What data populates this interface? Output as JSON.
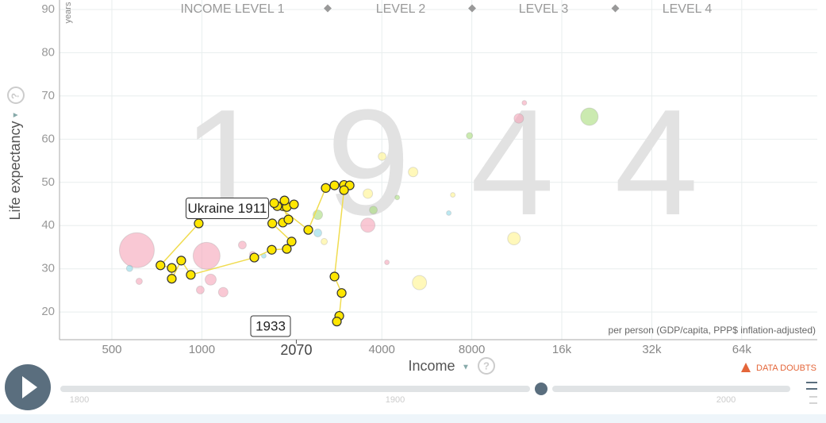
{
  "chart_data": {
    "type": "scatter",
    "year": "1944",
    "income_levels": [
      "INCOME LEVEL 1",
      "LEVEL 2",
      "LEVEL 3",
      "LEVEL 4"
    ],
    "y_label": "Life expectancy",
    "y_unit": "years",
    "x_label": "Income",
    "x_note": "per person (GDP/capita, PPP$ inflation-adjusted)",
    "menu_arrow": "▼",
    "help_icon": "?",
    "data_doubts": "DATA DOUBTS",
    "x_log": true,
    "grid": true,
    "xlim": [
      334,
      114500
    ],
    "ylim": [
      13.6,
      92.2
    ],
    "xticks": [
      500,
      1000,
      4000,
      8000,
      {
        "value": 16000,
        "label": "16k"
      },
      {
        "value": 32000,
        "label": "32k"
      },
      {
        "value": 64000,
        "label": "64k"
      }
    ],
    "yticks": [
      20,
      30,
      40,
      50,
      60,
      70,
      80,
      90
    ],
    "x_marker": 2070,
    "annotations": [
      "Ukraine 1911",
      "1933"
    ],
    "timeline_ticks": [
      "1800",
      "1900",
      "2000"
    ],
    "series": [
      {
        "color": "#f5a3b8",
        "x": [
          606,
          1037,
          1070,
          3592,
          1179,
          1366,
          1479,
          988,
          617,
          4159,
          11490,
          11990
        ],
        "values": [
          34.3,
          33.0,
          27.5,
          40.1,
          24.6,
          35.5,
          33.3,
          25.1,
          27.1,
          31.5,
          64.8,
          68.4
        ],
        "population": [
          336,
          200,
          34,
          56,
          25,
          17,
          11,
          17,
          11,
          6,
          25,
          6
        ]
      },
      {
        "color": "#a8dc7c",
        "x": [
          19790,
          2443,
          3748,
          7860,
          4504
        ],
        "values": [
          65.2,
          42.5,
          43.6,
          60.8,
          46.5
        ],
        "population": [
          84,
          25,
          17,
          11,
          6
        ]
      },
      {
        "color": "#8fd8e8",
        "x": [
          573,
          2443,
          6700,
          1611
        ],
        "values": [
          30.1,
          38.3,
          42.9,
          33.0
        ],
        "population": [
          11,
          17,
          6,
          6
        ]
      },
      {
        "color": "#fff38c",
        "x": [
          5345,
          11070,
          4010,
          5090,
          3592,
          2566,
          6910
        ],
        "values": [
          26.8,
          37.0,
          56.0,
          52.4,
          47.4,
          36.3,
          47.1
        ],
        "population": [
          56,
          44,
          17,
          25,
          25,
          11,
          6
        ]
      },
      {
        "color": "#ffe600",
        "trail": true,
        "x": [
          976,
          727,
          793,
          793,
          853,
          918,
          1498,
          1713,
          1924,
          1996,
          1720,
          1866,
          1948,
          1866,
          1788,
          1924,
          2033,
          1890,
          1745,
          2270,
          2597,
          2778,
          2989,
          3121,
          2989,
          2778,
          2935,
          2882,
          2829
        ],
        "values": [
          40.5,
          30.8,
          30.2,
          27.7,
          31.9,
          28.6,
          32.6,
          34.4,
          34.6,
          36.3,
          40.5,
          40.7,
          41.4,
          44.5,
          44.5,
          44.3,
          44.9,
          45.8,
          45.2,
          39.0,
          48.7,
          49.3,
          49.4,
          49.3,
          48.2,
          28.2,
          24.4,
          19.1,
          17.8
        ]
      }
    ]
  }
}
